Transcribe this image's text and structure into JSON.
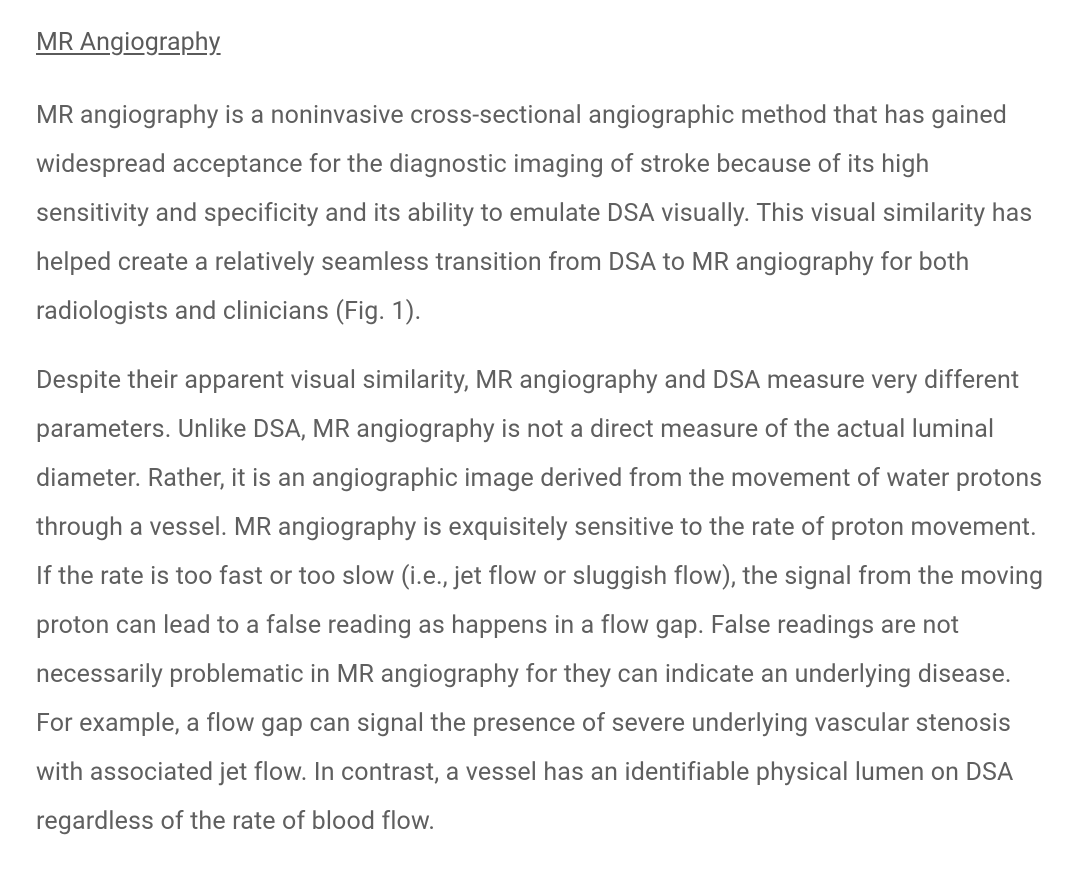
{
  "heading": "MR Angiography",
  "paragraphs": [
    "MR angiography is a noninvasive cross-sectional angiographic method that has gained widespread acceptance for the diagnostic imaging of stroke because of its high sensitivity and specificity and its ability to emulate DSA visually. This visual similarity has helped create a relatively seamless transition from DSA to MR angiography for both radiologists and clinicians (Fig. 1).",
    "Despite their apparent visual similarity, MR angiography and DSA measure very different parameters. Unlike DSA, MR angiography is not a direct measure of the actual luminal diameter.  Rather, it is an angiographic image derived from the movement of water protons through a vessel. MR angiography is exquisitely sensitive to the rate of proton movement. If the rate is too fast or too slow (i.e., jet flow or sluggish flow), the signal from the moving proton can lead to a false reading as happens in a flow gap.  False readings are not necessarily problematic in MR angiography for they can indicate an underlying disease.  For example, a flow gap can signal the presence of severe underlying vascular stenosis with associated jet flow. In contrast, a vessel has an identifiable physical lumen on DSA regardless of the rate of blood flow."
  ],
  "text_color": "#5f5f5f",
  "background_color": "#ffffff",
  "font_size": 25,
  "line_height": 1.96
}
